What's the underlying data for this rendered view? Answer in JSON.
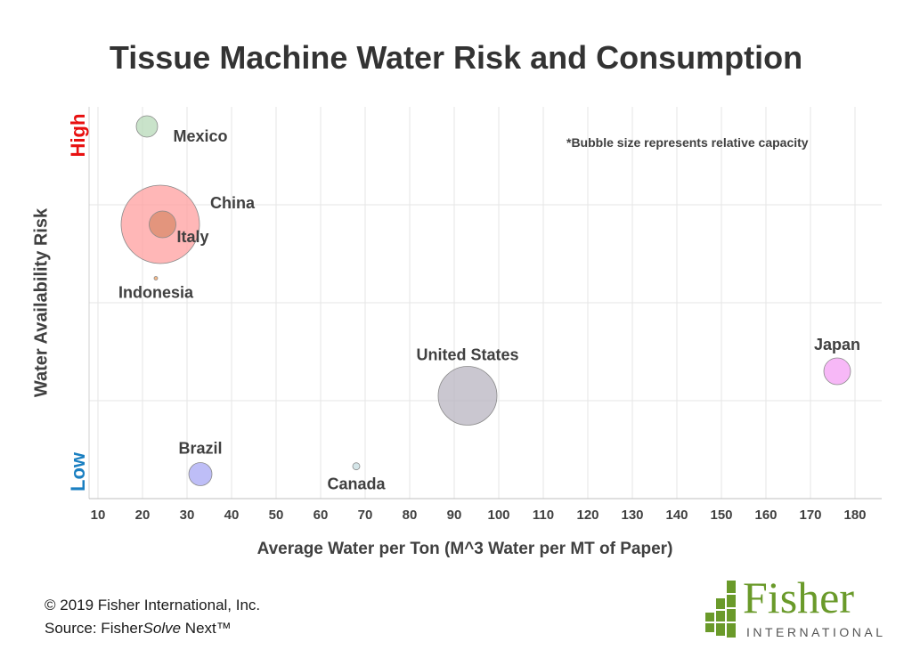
{
  "title": "Tissue Machine Water Risk and Consumption",
  "note": "*Bubble size represents relative capacity",
  "y_axis": {
    "label": "Water Availability Risk",
    "high": "High",
    "low": "Low",
    "high_color": "#e81010",
    "low_color": "#1a7fc1"
  },
  "x_axis": {
    "label": "Average Water per Ton (M^3 Water per MT of Paper)"
  },
  "footer": {
    "copyright": "© 2019 Fisher International, Inc.",
    "source_prefix": "Source: Fisher",
    "source_italic": "Solve",
    "source_suffix": " Next™"
  },
  "logo": {
    "word": "Fisher",
    "sub": "INTERNATIONAL",
    "color": "#6a9a2a"
  },
  "chart_data": {
    "type": "scatter",
    "bubble": true,
    "title": "Tissue Machine Water Risk and Consumption",
    "xlabel": "Average Water per Ton (M^3 Water per MT of Paper)",
    "ylabel": "Water Availability Risk",
    "xlim": [
      8,
      186
    ],
    "xticks": [
      10,
      20,
      30,
      40,
      50,
      60,
      70,
      80,
      90,
      100,
      110,
      120,
      130,
      140,
      150,
      160,
      170,
      180
    ],
    "ylim": [
      0,
      4
    ],
    "y_gridlines": [
      1,
      2,
      3
    ],
    "grid": true,
    "points": [
      {
        "label": "Mexico",
        "x": 21,
        "y": 3.8,
        "size": 12,
        "color": "#b7d9b8"
      },
      {
        "label": "China",
        "x": 24,
        "y": 2.8,
        "size": 44,
        "color": "#ff9f9f"
      },
      {
        "label": "Italy",
        "x": 24.5,
        "y": 2.8,
        "size": 15,
        "color": "#d98a6a"
      },
      {
        "label": "Indonesia",
        "x": 23,
        "y": 2.25,
        "size": 2,
        "color": "#f0a060"
      },
      {
        "label": "United States",
        "x": 93,
        "y": 1.05,
        "size": 33,
        "color": "#b8b4c0"
      },
      {
        "label": "Japan",
        "x": 176,
        "y": 1.3,
        "size": 15,
        "color": "#f4a0f4"
      },
      {
        "label": "Brazil",
        "x": 33,
        "y": 0.25,
        "size": 13,
        "color": "#a8a8f4"
      },
      {
        "label": "Canada",
        "x": 68,
        "y": 0.33,
        "size": 4,
        "color": "#c6dce0"
      }
    ]
  }
}
